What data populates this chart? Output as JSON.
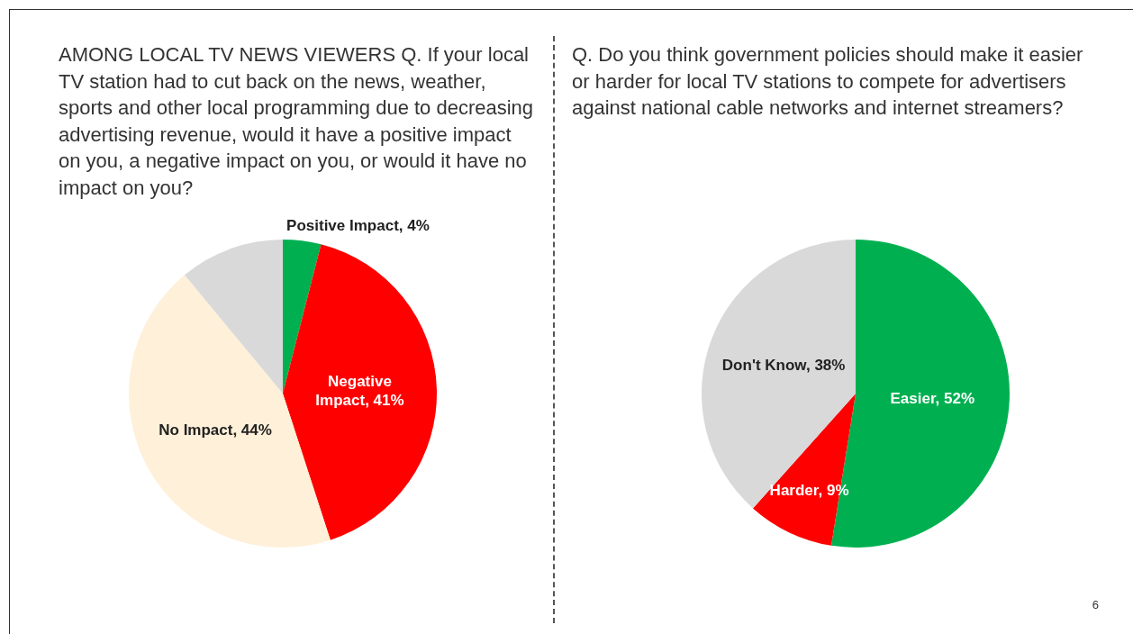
{
  "chart_data": [
    {
      "type": "pie",
      "title": "AMONG LOCAL TV NEWS VIEWERS Q. If your local TV station had to cut back on the news, weather, sports and other local programming due to decreasing advertising revenue, would it have a positive impact on you, a negative impact on you, or would it have no impact on you?",
      "categories": [
        "Positive Impact",
        "Negative Impact",
        "No Impact",
        null
      ],
      "values": [
        4,
        41,
        44,
        11
      ],
      "colors": [
        "#00b050",
        "#ff0000",
        "#fff0d9",
        "#d9d9d9"
      ],
      "value_labels": [
        "4%",
        "41%",
        "44%",
        null
      ],
      "legend": false
    },
    {
      "type": "pie",
      "title": "Q. Do you think government policies should make it easier or harder for local TV stations to compete for advertisers against national cable networks and internet streamers?",
      "categories": [
        "Easier",
        "Harder",
        "Don't Know"
      ],
      "values": [
        52,
        9,
        38
      ],
      "colors": [
        "#00b050",
        "#ff0000",
        "#d9d9d9"
      ],
      "value_labels": [
        "52%",
        "9%",
        "38%"
      ],
      "legend": false,
      "annotations": [
        "6"
      ]
    }
  ]
}
